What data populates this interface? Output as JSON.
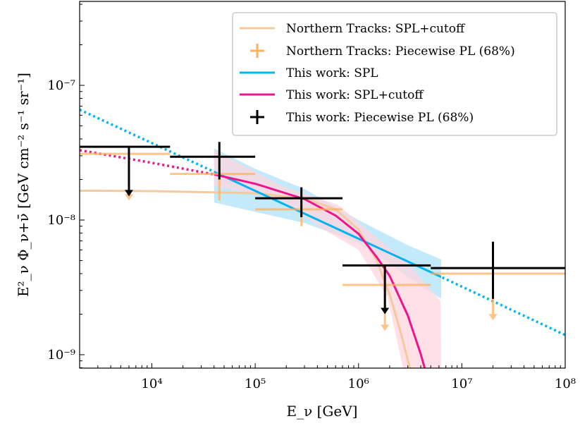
{
  "chart_data": {
    "type": "line",
    "xlabel": "E_ν [GeV]",
    "ylabel": "E²_ν Φ_ν+ν̄ [GeV cm⁻² s⁻¹ sr⁻¹]",
    "xscale": "log",
    "yscale": "log",
    "xlim": [
      2000,
      100000000
    ],
    "ylim": [
      7.95e-10,
      4.2e-07
    ],
    "grid": false,
    "legend_position": "top-right",
    "x_ticks": [
      {
        "value": 10000,
        "label": "10⁴"
      },
      {
        "value": 100000,
        "label": "10⁵"
      },
      {
        "value": 1000000,
        "label": "10⁶"
      },
      {
        "value": 10000000,
        "label": "10⁷"
      },
      {
        "value": 100000000,
        "label": "10⁸"
      }
    ],
    "y_ticks": [
      {
        "value": 1e-07,
        "label": "10⁻⁷"
      },
      {
        "value": 1e-08,
        "label": "10⁻⁸"
      },
      {
        "value": 1e-09,
        "label": "10⁻⁹"
      }
    ],
    "colors": {
      "nt_spl_cutoff": "#f5c9a0",
      "nt_piecewise": "#ffb160",
      "spl": "#00b4f0",
      "spl_cutoff": "#f0148c",
      "piecewise": "#000000",
      "spl_band": "#bfe9fa",
      "cutoff_band": "#fdd5dd"
    },
    "bands": [
      {
        "series": "This work: SPL",
        "x": [
          40000,
          100000,
          300000,
          1000000,
          3000000,
          6300000
        ],
        "upper": [
          3.4e-08,
          2.4e-08,
          1.7e-08,
          1e-08,
          6.5e-09,
          5.1e-09
        ],
        "lower": [
          1.35e-08,
          1.15e-08,
          9.5e-09,
          6.8e-09,
          3.8e-09,
          2.6e-09
        ]
      },
      {
        "series": "This work: SPL+cutoff",
        "x_upper": [
          40000,
          180000,
          630000,
          1600000,
          3000000,
          6200000,
          6300000
        ],
        "upper": [
          3.3e-08,
          1.8e-08,
          1.3e-08,
          7.1e-09,
          4.8e-09,
          2.5e-09,
          7.9e-10
        ],
        "x_lower": [
          40000,
          180000,
          460000,
          1000000,
          1900000,
          2700000
        ],
        "lower": [
          1.8e-08,
          1.4e-08,
          8.5e-09,
          6e-09,
          2.7e-09,
          7.9e-10
        ]
      }
    ],
    "series": [
      {
        "name": "Northern Tracks: SPL+cutoff",
        "kind": "curve",
        "points": [
          [
            2000,
            1.65e-08
          ],
          [
            10000,
            1.64e-08
          ],
          [
            100000,
            1.58e-08
          ],
          [
            300000,
            1.45e-08
          ],
          [
            600000,
            1.2e-08
          ],
          [
            1000000,
            8.5e-09
          ],
          [
            1500000,
            5e-09
          ],
          [
            2000000,
            2.8e-09
          ],
          [
            2600000,
            1.4e-09
          ],
          [
            3200000,
            7.5e-10
          ]
        ]
      },
      {
        "name": "This work: SPL",
        "kind": "curve",
        "solid_range": [
          40000,
          6300000
        ],
        "points": [
          [
            2000,
            6.6e-08
          ],
          [
            40000,
            2.28e-08
          ],
          [
            6300000,
            3.78e-09
          ],
          [
            100000000,
            1.4e-09
          ]
        ]
      },
      {
        "name": "This work: SPL+cutoff",
        "kind": "curve",
        "solid_range": [
          40000,
          100000000
        ],
        "points": [
          [
            2000,
            3.3e-08
          ],
          [
            10000,
            2.66e-08
          ],
          [
            40000,
            2.18e-08
          ],
          [
            100000,
            1.86e-08
          ],
          [
            300000,
            1.43e-08
          ],
          [
            600000,
            1.08e-08
          ],
          [
            1000000,
            7.9e-09
          ],
          [
            1500000,
            5.3e-09
          ],
          [
            2000000,
            3.85e-09
          ],
          [
            3000000,
            1.95e-09
          ],
          [
            4000000,
            1.01e-09
          ],
          [
            4600000,
            6.9e-10
          ]
        ]
      },
      {
        "name": "Northern Tracks: Piecewise PL (68%)",
        "kind": "piecewise",
        "bins": [
          {
            "x_lo": 2000,
            "x_hi": 15000,
            "x": 6000,
            "y": 3.1e-08,
            "upper_limit": true,
            "arrow_to": 1.4e-08
          },
          {
            "x_lo": 15000,
            "x_hi": 100000,
            "x": 45000,
            "y": 2.2e-08,
            "err_lo": 1.4e-08,
            "err_hi": 3.2e-08
          },
          {
            "x_lo": 100000,
            "x_hi": 700000,
            "x": 280000,
            "y": 1.2e-08,
            "err_lo": 9e-09,
            "err_hi": 1.5e-08
          },
          {
            "x_lo": 700000,
            "x_hi": 5000000,
            "x": 1800000,
            "y": 3.3e-09,
            "upper_limit": true,
            "arrow_to": 1.5e-09
          },
          {
            "x_lo": 5000000,
            "x_hi": 100000000,
            "x": 20000000,
            "y": 4e-09,
            "upper_limit": true,
            "arrow_to": 1.8e-09
          }
        ]
      },
      {
        "name": "This work: Piecewise PL (68%)",
        "kind": "piecewise",
        "bins": [
          {
            "x_lo": 2000,
            "x_hi": 15000,
            "x": 6000,
            "y": 3.5e-08,
            "upper_limit": true,
            "arrow_to": 1.5e-08
          },
          {
            "x_lo": 15000,
            "x_hi": 100000,
            "x": 45000,
            "y": 2.95e-08,
            "err_lo": 2e-08,
            "err_hi": 3.8e-08
          },
          {
            "x_lo": 100000,
            "x_hi": 700000,
            "x": 280000,
            "y": 1.45e-08,
            "err_lo": 1.05e-08,
            "err_hi": 1.75e-08
          },
          {
            "x_lo": 700000,
            "x_hi": 5000000,
            "x": 1800000,
            "y": 4.6e-09,
            "upper_limit": true,
            "arrow_to": 2e-09
          },
          {
            "x_lo": 5000000,
            "x_hi": 100000000,
            "x": 20000000,
            "y": 4.4e-09,
            "err_lo": 2.6e-09,
            "err_hi": 6.9e-09
          }
        ]
      }
    ],
    "legend": [
      {
        "label": "Northern Tracks: SPL+cutoff",
        "marker": "line",
        "color": "#f5c9a0"
      },
      {
        "label": "Northern Tracks: Piecewise PL (68%)",
        "marker": "cross",
        "color": "#ffb160"
      },
      {
        "label": "This work: SPL",
        "marker": "line",
        "color": "#00b4f0"
      },
      {
        "label": "This work: SPL+cutoff",
        "marker": "line",
        "color": "#f0148c"
      },
      {
        "label": "This work: Piecewise PL (68%)",
        "marker": "cross",
        "color": "#000000"
      }
    ]
  }
}
